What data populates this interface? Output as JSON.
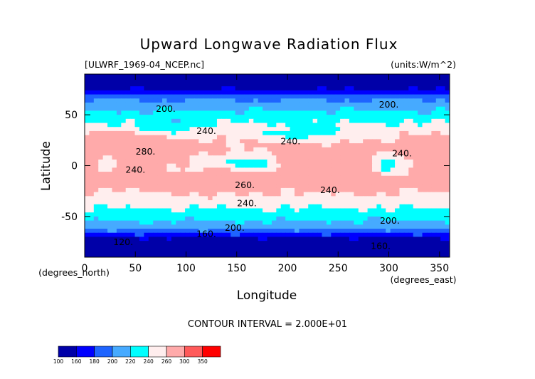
{
  "chart_data": {
    "type": "heatmap",
    "title": "Upward Longwave Radiation Flux",
    "source_label": "[ULWRF_1969-04_NCEP.nc]",
    "units_label": "(units:W/m^2)",
    "xlabel": "Longitude",
    "ylabel": "Latitude",
    "x_unit_label": "(degrees_east)",
    "y_unit_label": "(degrees_north)",
    "xlim": [
      0,
      360
    ],
    "ylim": [
      -90,
      90
    ],
    "x_ticks": [
      0,
      50,
      100,
      150,
      200,
      250,
      300,
      350
    ],
    "y_ticks": [
      -50,
      0,
      50
    ],
    "contour_interval_text": "CONTOUR INTERVAL = 2.000E+01",
    "colorbar": {
      "levels": [
        100,
        160,
        180,
        200,
        220,
        240,
        260,
        300,
        350
      ],
      "colors": [
        "#0000a8",
        "#0000ff",
        "#1e64ff",
        "#46aaff",
        "#00ffff",
        "#ffeeee",
        "#ffaaaa",
        "#ff5a5a",
        "#ff0000"
      ]
    },
    "contour_labels": [
      {
        "text": "200.",
        "lon": 80,
        "lat": 53
      },
      {
        "text": "200.",
        "lon": 300,
        "lat": 57
      },
      {
        "text": "240.",
        "lon": 120,
        "lat": 31
      },
      {
        "text": "240.",
        "lon": 203,
        "lat": 21
      },
      {
        "text": "240.",
        "lon": 313,
        "lat": 9
      },
      {
        "text": "280.",
        "lon": 60,
        "lat": 11
      },
      {
        "text": "240.",
        "lon": 50,
        "lat": -7
      },
      {
        "text": "260.",
        "lon": 158,
        "lat": -22
      },
      {
        "text": "240.",
        "lon": 242,
        "lat": -27
      },
      {
        "text": "240.",
        "lon": 160,
        "lat": -40
      },
      {
        "text": "200.",
        "lon": 148,
        "lat": -64
      },
      {
        "text": "200.",
        "lon": 301,
        "lat": -57
      },
      {
        "text": "160.",
        "lon": 120,
        "lat": -70
      },
      {
        "text": "120.",
        "lon": 38,
        "lat": -78
      },
      {
        "text": "160.",
        "lon": 292,
        "lat": -82
      }
    ]
  }
}
